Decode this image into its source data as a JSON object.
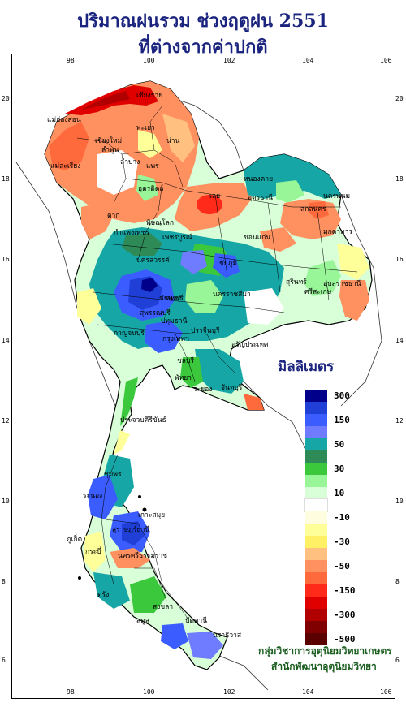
{
  "title_line1": "ปริมาณฝนรวม ช่วงฤดูฝน 2551",
  "title_line2": "ที่ต่างจากค่าปกติ",
  "x_ticks": [
    "98",
    "100",
    "102",
    "104",
    "106"
  ],
  "y_ticks": [
    "20",
    "18",
    "16",
    "14",
    "12",
    "10",
    "8",
    "6"
  ],
  "legend": {
    "title": "มิลลิเมตร",
    "entries": [
      {
        "label": "300",
        "color": "#00008b"
      },
      {
        "label": "",
        "color": "#1f3fd6"
      },
      {
        "label": "150",
        "color": "#3b5cff"
      },
      {
        "label": "",
        "color": "#6f7cff"
      },
      {
        "label": "50",
        "color": "#17a6a6"
      },
      {
        "label": "",
        "color": "#2e8b57"
      },
      {
        "label": "30",
        "color": "#3cc83c"
      },
      {
        "label": "",
        "color": "#98f598"
      },
      {
        "label": "10",
        "color": "#d8ffd8"
      },
      {
        "label": "",
        "color": "#ffffff"
      },
      {
        "label": "-10",
        "color": "#fffde0"
      },
      {
        "label": "",
        "color": "#ffff99"
      },
      {
        "label": "-30",
        "color": "#fff066"
      },
      {
        "label": "",
        "color": "#ffc080"
      },
      {
        "label": "-50",
        "color": "#ff9060"
      },
      {
        "label": "",
        "color": "#ff6a3d"
      },
      {
        "label": "-150",
        "color": "#ff2a1a"
      },
      {
        "label": "",
        "color": "#e00000"
      },
      {
        "label": "-300",
        "color": "#b00000"
      },
      {
        "label": "",
        "color": "#800000"
      },
      {
        "label": "-500",
        "color": "#5a0000"
      }
    ]
  },
  "credit_line1": "กลุ่มวิชาการอุตุนิยมวิทยาเกษตร",
  "credit_line2": "สำนักพัฒนาอุตุนิยมวิทยา",
  "provinces": [
    {
      "name": "เชียงราย"
    },
    {
      "name": "แม่ฮ่องสอน"
    },
    {
      "name": "พะเยา"
    },
    {
      "name": "เชียงใหม่"
    },
    {
      "name": "ลำพูน"
    },
    {
      "name": "น่าน"
    },
    {
      "name": "ลำปาง"
    },
    {
      "name": "แพร่"
    },
    {
      "name": "แม่สะเรียง"
    },
    {
      "name": "อุตรดิตถ์"
    },
    {
      "name": "เลย"
    },
    {
      "name": "หนองคาย"
    },
    {
      "name": "อุดรธานี"
    },
    {
      "name": "นครพนม"
    },
    {
      "name": "สกลนคร"
    },
    {
      "name": "มุกดาหาร"
    },
    {
      "name": "ตาก"
    },
    {
      "name": "พิษณุโลก"
    },
    {
      "name": "กำแพงเพชร"
    },
    {
      "name": "เพชรบูรณ์"
    },
    {
      "name": "ขอนแก่น"
    },
    {
      "name": "นครสวรรค์"
    },
    {
      "name": "ชัยภูมิ"
    },
    {
      "name": "อุบลราชธานี"
    },
    {
      "name": "ลพบุรี"
    },
    {
      "name": "นครราชสีมา"
    },
    {
      "name": "สุรินทร์"
    },
    {
      "name": "ศรีสะเกษ"
    },
    {
      "name": "สุพรรณบุรี"
    },
    {
      "name": "ชัยนาท"
    },
    {
      "name": "กาญจนบุรี"
    },
    {
      "name": "ปทุมธานี"
    },
    {
      "name": "กรุงเทพฯ"
    },
    {
      "name": "ปราจีนบุรี"
    },
    {
      "name": "อรัญประเทศ"
    },
    {
      "name": "ชลบุรี"
    },
    {
      "name": "พัทยา"
    },
    {
      "name": "ระยอง"
    },
    {
      "name": "จันทบุรี"
    },
    {
      "name": "ประจวบคีรีขันธ์"
    },
    {
      "name": "ชุมพร"
    },
    {
      "name": "ระนอง"
    },
    {
      "name": "เกาะสมุย"
    },
    {
      "name": "สุราษฎร์ธานี"
    },
    {
      "name": "ภูเก็ต"
    },
    {
      "name": "กระบี่"
    },
    {
      "name": "นครศรีธรรมราช"
    },
    {
      "name": "ตรัง"
    },
    {
      "name": "สงขลา"
    },
    {
      "name": "สตูล"
    },
    {
      "name": "ปัตตานี"
    },
    {
      "name": "นราธิวาส"
    }
  ]
}
